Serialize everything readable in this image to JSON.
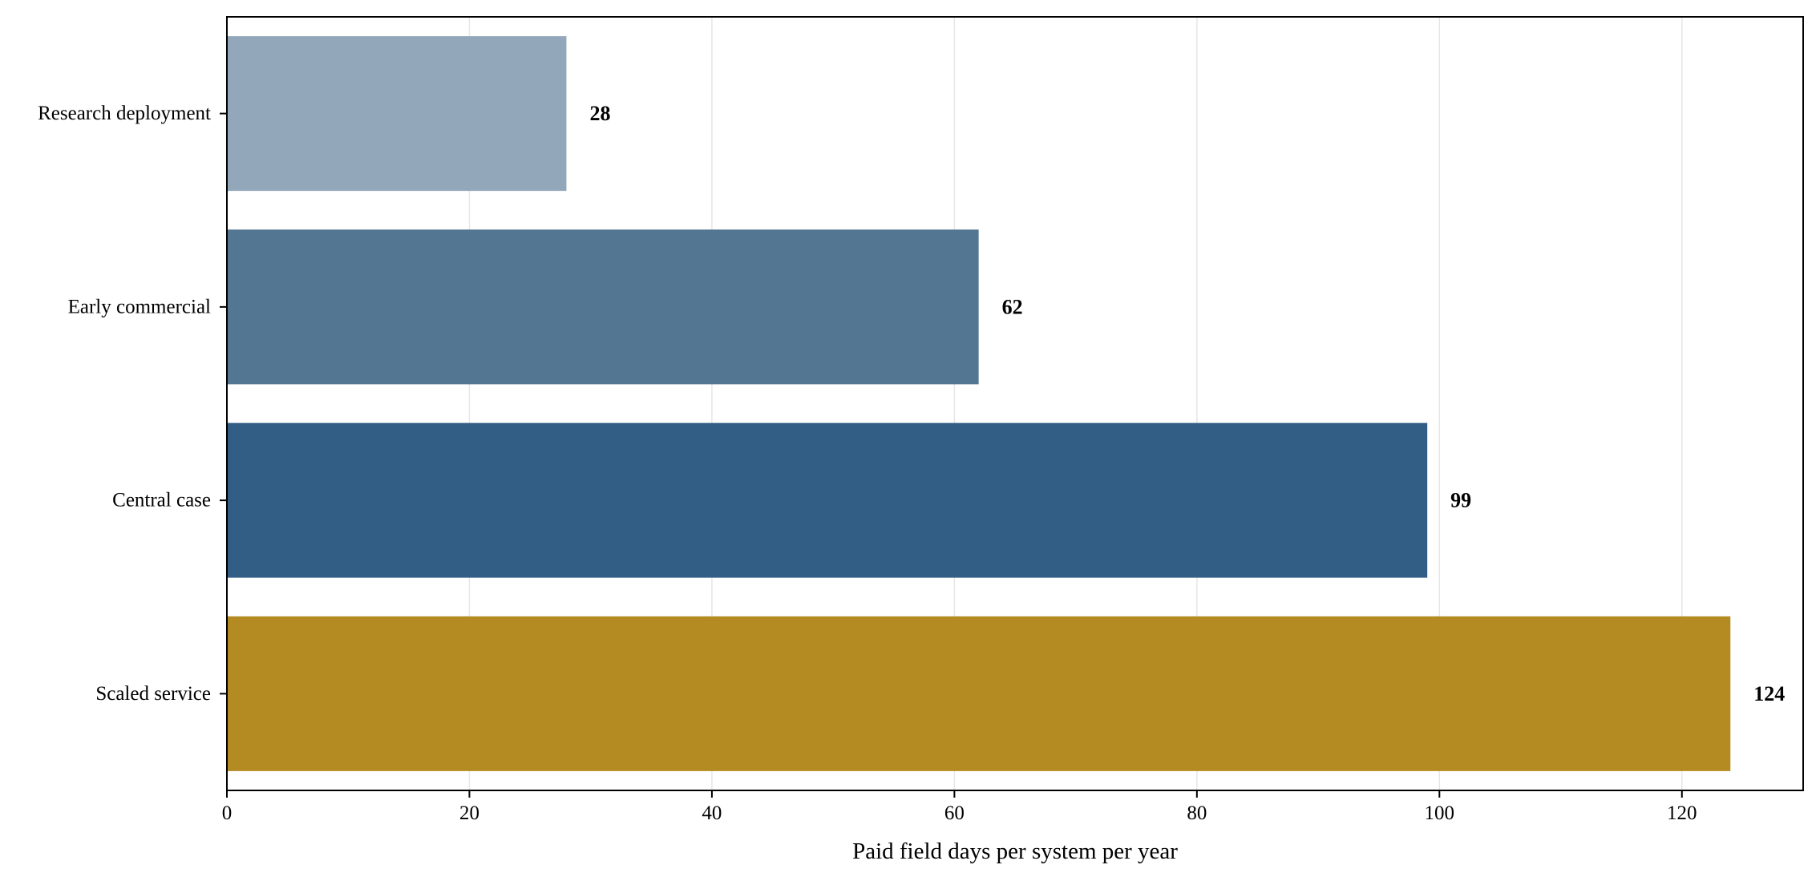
{
  "chart_data": {
    "type": "bar",
    "orientation": "horizontal",
    "categories": [
      "Research deployment",
      "Early commercial",
      "Central case",
      "Scaled service"
    ],
    "values": [
      28,
      62,
      99,
      124
    ],
    "value_labels": [
      "28",
      "62",
      "99",
      "124"
    ],
    "colors": [
      "#92a7ba",
      "#537693",
      "#325d84",
      "#b38b22"
    ],
    "xlabel": "Paid field days per system per year",
    "ylabel": "",
    "title": "",
    "xlim": [
      0,
      130
    ],
    "xticks": [
      0,
      20,
      40,
      60,
      80,
      100,
      120
    ],
    "xtick_labels": [
      "0",
      "20",
      "40",
      "60",
      "80",
      "100",
      "120"
    ],
    "grid": "vertical",
    "legend": "none"
  }
}
